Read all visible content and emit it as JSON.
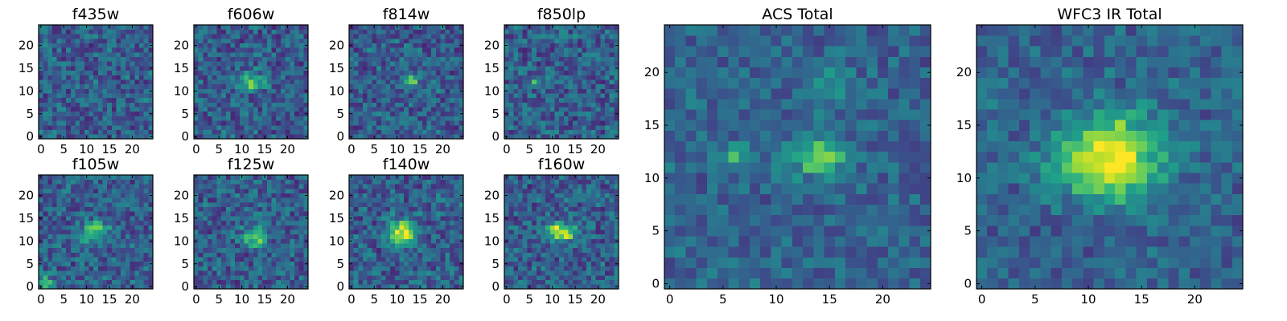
{
  "figure": {
    "colormap": [
      "#440154",
      "#482878",
      "#3e4989",
      "#31688e",
      "#26828e",
      "#1f9e89",
      "#35b779",
      "#6ece58",
      "#b5de2b",
      "#fde725"
    ]
  },
  "chart_data": [
    {
      "type": "heatmap",
      "title": "f435w",
      "grid": false,
      "shape": [
        25,
        25
      ],
      "xlim": [
        -0.5,
        24.5
      ],
      "ylim": [
        -0.5,
        24.5
      ],
      "xticks": [
        "0",
        "5",
        "10",
        "15",
        "20"
      ],
      "yticks": [
        "0",
        "5",
        "10",
        "15",
        "20"
      ],
      "features": []
    },
    {
      "type": "heatmap",
      "title": "f606w",
      "grid": false,
      "shape": [
        25,
        25
      ],
      "xlim": [
        -0.5,
        24.5
      ],
      "ylim": [
        -0.5,
        24.5
      ],
      "xticks": [
        "0",
        "5",
        "10",
        "15",
        "20"
      ],
      "yticks": [
        "0",
        "5",
        "10",
        "15",
        "20"
      ],
      "features": [
        {
          "x": 12,
          "y": 12,
          "peak": 0.45,
          "sx": 2.0,
          "sy": 1.3
        }
      ]
    },
    {
      "type": "heatmap",
      "title": "f814w",
      "grid": false,
      "shape": [
        25,
        25
      ],
      "xlim": [
        -0.5,
        24.5
      ],
      "ylim": [
        -0.5,
        24.5
      ],
      "xticks": [
        "0",
        "5",
        "10",
        "15",
        "20"
      ],
      "yticks": [
        "0",
        "5",
        "10",
        "15",
        "20"
      ],
      "features": [
        {
          "x": 13,
          "y": 12,
          "peak": 0.5,
          "sx": 1.0,
          "sy": 1.0
        }
      ]
    },
    {
      "type": "heatmap",
      "title": "f850lp",
      "grid": false,
      "shape": [
        25,
        25
      ],
      "xlim": [
        -0.5,
        24.5
      ],
      "ylim": [
        -0.5,
        24.5
      ],
      "xticks": [
        "0",
        "5",
        "10",
        "15",
        "20"
      ],
      "yticks": [
        "0",
        "5",
        "10",
        "15",
        "20"
      ],
      "features": [
        {
          "x": 6,
          "y": 12,
          "peak": 0.5,
          "sx": 0.7,
          "sy": 0.7
        }
      ]
    },
    {
      "type": "heatmap",
      "title": "f105w",
      "grid": false,
      "shape": [
        25,
        25
      ],
      "xlim": [
        -0.5,
        24.5
      ],
      "ylim": [
        -0.5,
        24.5
      ],
      "xticks": [
        "0",
        "5",
        "10",
        "15",
        "20"
      ],
      "yticks": [
        "0",
        "5",
        "10",
        "15",
        "20"
      ],
      "features": [
        {
          "x": 12,
          "y": 12,
          "peak": 0.45,
          "sx": 2.0,
          "sy": 1.6
        },
        {
          "x": 1,
          "y": 1,
          "peak": 0.5,
          "sx": 1.0,
          "sy": 1.0
        }
      ]
    },
    {
      "type": "heatmap",
      "title": "f125w",
      "grid": false,
      "shape": [
        25,
        25
      ],
      "xlim": [
        -0.5,
        24.5
      ],
      "ylim": [
        -0.5,
        24.5
      ],
      "xticks": [
        "0",
        "5",
        "10",
        "15",
        "20"
      ],
      "yticks": [
        "0",
        "5",
        "10",
        "15",
        "20"
      ],
      "features": [
        {
          "x": 13,
          "y": 11,
          "peak": 0.5,
          "sx": 1.8,
          "sy": 1.5
        }
      ]
    },
    {
      "type": "heatmap",
      "title": "f140w",
      "grid": false,
      "shape": [
        25,
        25
      ],
      "xlim": [
        -0.5,
        24.5
      ],
      "ylim": [
        -0.5,
        24.5
      ],
      "xticks": [
        "0",
        "5",
        "10",
        "15",
        "20"
      ],
      "yticks": [
        "0",
        "5",
        "10",
        "15",
        "20"
      ],
      "features": [
        {
          "x": 11,
          "y": 12,
          "peak": 0.65,
          "sx": 2.2,
          "sy": 1.8
        }
      ]
    },
    {
      "type": "heatmap",
      "title": "f160w",
      "grid": false,
      "shape": [
        25,
        25
      ],
      "xlim": [
        -0.5,
        24.5
      ],
      "ylim": [
        -0.5,
        24.5
      ],
      "xticks": [
        "0",
        "5",
        "10",
        "15",
        "20"
      ],
      "yticks": [
        "0",
        "5",
        "10",
        "15",
        "20"
      ],
      "features": [
        {
          "x": 12,
          "y": 12,
          "peak": 0.7,
          "sx": 2.2,
          "sy": 1.3
        }
      ]
    },
    {
      "type": "heatmap",
      "title": "ACS Total",
      "grid": false,
      "shape": [
        25,
        25
      ],
      "xlim": [
        -0.5,
        24.5
      ],
      "ylim": [
        -0.5,
        24.5
      ],
      "xticks": [
        "0",
        "5",
        "10",
        "15",
        "20"
      ],
      "yticks": [
        "0",
        "5",
        "10",
        "15",
        "20"
      ],
      "features": [
        {
          "x": 14,
          "y": 12,
          "peak": 0.45,
          "sx": 2.0,
          "sy": 1.2
        },
        {
          "x": 6,
          "y": 12,
          "peak": 0.45,
          "sx": 0.8,
          "sy": 0.8
        },
        {
          "x": 15,
          "y": 19,
          "peak": 0.25,
          "sx": 1.5,
          "sy": 1.5
        }
      ]
    },
    {
      "type": "heatmap",
      "title": "WFC3 IR Total",
      "grid": false,
      "shape": [
        25,
        25
      ],
      "xlim": [
        -0.5,
        24.5
      ],
      "ylim": [
        -0.5,
        24.5
      ],
      "xticks": [
        "0",
        "5",
        "10",
        "15",
        "20"
      ],
      "yticks": [
        "0",
        "5",
        "10",
        "15",
        "20"
      ],
      "features": [
        {
          "x": 12,
          "y": 12,
          "peak": 0.75,
          "sx": 3.2,
          "sy": 2.6
        }
      ]
    }
  ]
}
